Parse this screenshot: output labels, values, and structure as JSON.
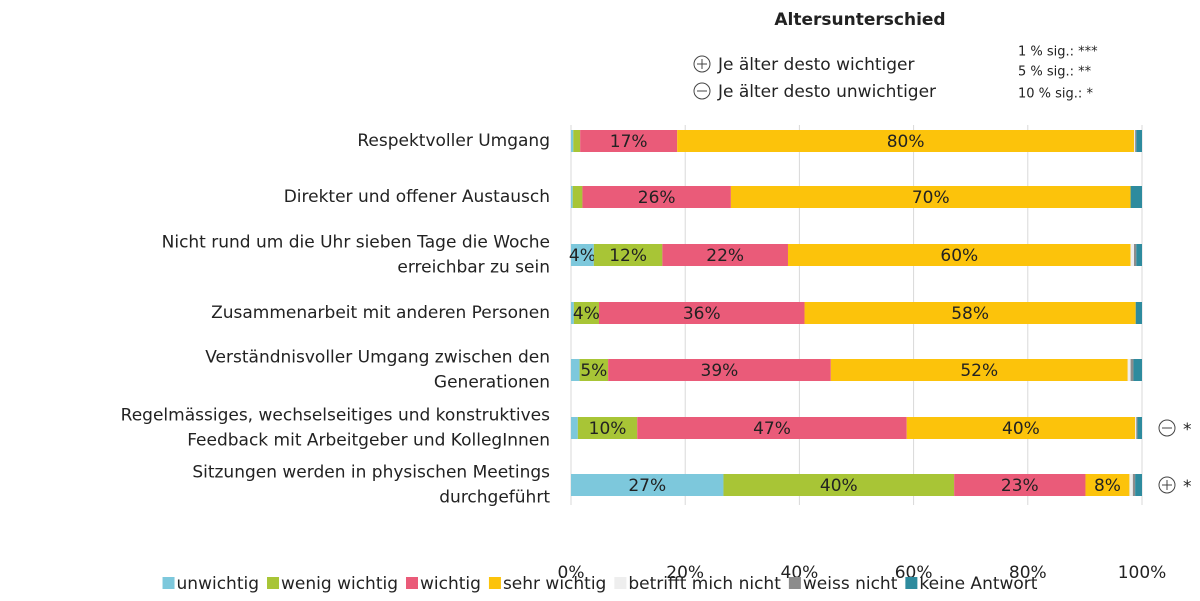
{
  "chart_data": {
    "type": "stacked-bar-horizontal",
    "title": "Altersunterschied",
    "annotations": {
      "plus": "Je älter desto wichtiger",
      "minus": "Je älter desto unwichtiger",
      "sig": [
        "1 % sig.: ***",
        "5 % sig.: **",
        "10 % sig.: *"
      ]
    },
    "categories": [
      [
        "Respektvoller Umgang"
      ],
      [
        "Direkter und offener Austausch"
      ],
      [
        "Nicht rund um die Uhr sieben Tage die Woche",
        "erreichbar zu sein"
      ],
      [
        "Zusammenarbeit mit anderen Personen"
      ],
      [
        "Verständnisvoller Umgang zwischen den",
        "Generationen"
      ],
      [
        "Regelmässiges, wechselseitiges und konstruktives",
        "Feedback mit Arbeitgeber und KollegInnen"
      ],
      [
        "Sitzungen werden in physischen Meetings",
        "durchgeführt"
      ]
    ],
    "significance": [
      null,
      null,
      null,
      null,
      null,
      {
        "sign": "minus",
        "stars": "*"
      },
      {
        "sign": "plus",
        "stars": "*"
      }
    ],
    "series": [
      {
        "name": "unwichtig",
        "color": "#7dc8dc",
        "values": [
          0.4,
          0.3,
          4,
          0.5,
          1.5,
          1.2,
          26.7
        ],
        "value_labels": [
          null,
          null,
          "4%",
          null,
          null,
          null,
          "27%"
        ]
      },
      {
        "name": "wenig wichtig",
        "color": "#a8c536",
        "values": [
          1.2,
          1.7,
          12,
          4.4,
          5,
          10.4,
          40.4
        ],
        "value_labels": [
          null,
          null,
          "12%",
          "4%",
          "5%",
          "10%",
          "40%"
        ]
      },
      {
        "name": "wichtig",
        "color": "#ea5b79",
        "values": [
          17,
          26,
          22,
          36,
          39,
          47.2,
          23
        ],
        "value_labels": [
          "17%",
          "26%",
          "22%",
          "36%",
          "39%",
          "47%",
          "23%"
        ]
      },
      {
        "name": "sehr wichtig",
        "color": "#fcc30b",
        "values": [
          80,
          70,
          60,
          58,
          52,
          40,
          7.7
        ],
        "value_labels": [
          "80%",
          "70%",
          "60%",
          "58%",
          "52%",
          "40%",
          "8%"
        ]
      },
      {
        "name": "betrifft mich nicht",
        "color": "#eeeeee",
        "values": [
          0.2,
          0,
          0.6,
          0,
          0.5,
          0.2,
          0.6
        ],
        "value_labels": [
          null,
          null,
          null,
          null,
          null,
          null,
          null
        ]
      },
      {
        "name": "weiss nicht",
        "color": "#8c8c8c",
        "values": [
          0.2,
          0,
          0.4,
          0,
          0.5,
          0.2,
          0.4
        ],
        "value_labels": [
          null,
          null,
          null,
          null,
          null,
          null,
          null
        ]
      },
      {
        "name": "keine Antwort",
        "color": "#2e8b9e",
        "values": [
          1,
          2,
          1,
          1.1,
          1.5,
          0.8,
          1.2
        ],
        "value_labels": [
          null,
          null,
          null,
          null,
          null,
          null,
          null
        ]
      }
    ],
    "xlim": [
      0,
      100
    ],
    "xticks": [
      {
        "value": 0,
        "label": "0%"
      },
      {
        "value": 20,
        "label": "20%"
      },
      {
        "value": 40,
        "label": "40%"
      },
      {
        "value": 60,
        "label": "60%"
      },
      {
        "value": 80,
        "label": "80%"
      },
      {
        "value": 100,
        "label": "100%"
      }
    ],
    "grid": true,
    "legend": "bottom"
  }
}
